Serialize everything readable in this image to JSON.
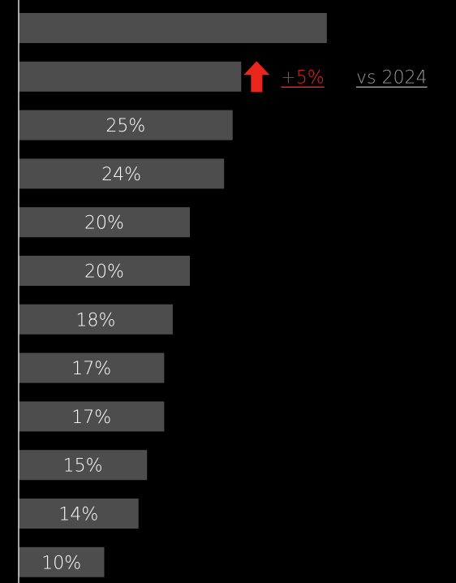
{
  "chart_data": {
    "type": "bar",
    "orientation": "horizontal",
    "xlim": [
      0,
      100
    ],
    "values": [
      36,
      26,
      25,
      24,
      20,
      20,
      18,
      17,
      17,
      15,
      14,
      10
    ],
    "labels": [
      "",
      "",
      "25%",
      "24%",
      "20%",
      "20%",
      "18%",
      "17%",
      "17%",
      "15%",
      "14%",
      "10%"
    ],
    "annotation": {
      "bar_index": 1,
      "direction": "up",
      "change": "+5%",
      "comparison": "vs 2024"
    },
    "colors": {
      "background": "#000000",
      "bar": "#4d4d4d",
      "axis": "#d9d9d9",
      "label": "#ffffff",
      "change": "#e8261c",
      "comparison": "#9a9a9a"
    }
  }
}
